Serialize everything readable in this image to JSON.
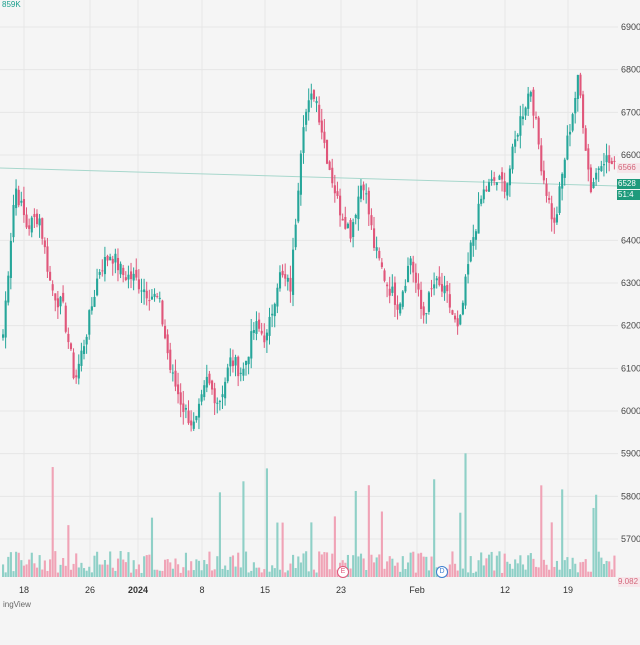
{
  "header": {
    "volume_label": "859K"
  },
  "branding": {
    "text": "ingView"
  },
  "chart_data": {
    "type": "candlestick",
    "x_tick_labels": [
      "18",
      "26",
      "2024",
      "8",
      "15",
      "23",
      "Feb",
      "12",
      "19"
    ],
    "y_tick_labels": [
      "6900",
      "6800",
      "6700",
      "6600",
      "6400",
      "6300",
      "6200",
      "6100",
      "6000",
      "5900",
      "5800",
      "5700"
    ],
    "y_tick_values": [
      6900,
      6800,
      6700,
      6600,
      6400,
      6300,
      6200,
      6100,
      6000,
      5900,
      5800,
      5700
    ],
    "ylim": [
      5700,
      6900
    ],
    "price_tags": {
      "red_level": "6566",
      "green_price": "6528",
      "green_countdown": "51:4"
    },
    "volume_tag": "9.082",
    "markers": {
      "earnings": "E",
      "dividend": "D"
    },
    "colors": {
      "up": "#26a69a",
      "down": "#e0567a",
      "up_volume": "#8fd0c7",
      "down_volume": "#f0a3b6",
      "reference_line": "#a7d7cc",
      "grid": "#e6e6e6"
    },
    "close_path": [
      6180,
      6530,
      6430,
      6460,
      6290,
      6240,
      6070,
      6190,
      6330,
      6370,
      6320,
      6310,
      6280,
      6260,
      6090,
      6010,
      5960,
      6070,
      6020,
      6120,
      6090,
      6200,
      6170,
      6320,
      6290,
      6680,
      6750,
      6600,
      6480,
      6420,
      6550,
      6380,
      6300,
      6250,
      6360,
      6220,
      6300,
      6270,
      6180,
      6380,
      6510,
      6540,
      6530,
      6670,
      6760,
      6560,
      6430,
      6620,
      6780,
      6520,
      6600,
      6570
    ]
  }
}
